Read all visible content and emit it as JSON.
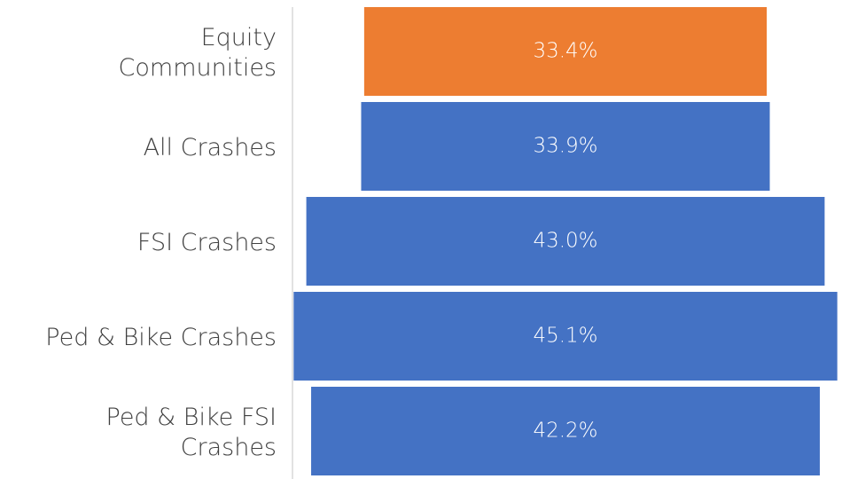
{
  "chart_data": {
    "type": "funnel",
    "categories": [
      "Equity Communities",
      "All Crashes",
      "FSI Crashes",
      "Ped & Bike Crashes",
      "Ped & Bike FSI Crashes"
    ],
    "values": [
      33.4,
      33.9,
      43.0,
      45.1,
      42.2
    ],
    "value_labels": [
      "33.4%",
      "33.9%",
      "43.0%",
      "45.1%",
      "42.2%"
    ],
    "colors": [
      "#ed7d31",
      "#4472c4",
      "#4472c4",
      "#4472c4",
      "#4472c4"
    ]
  }
}
